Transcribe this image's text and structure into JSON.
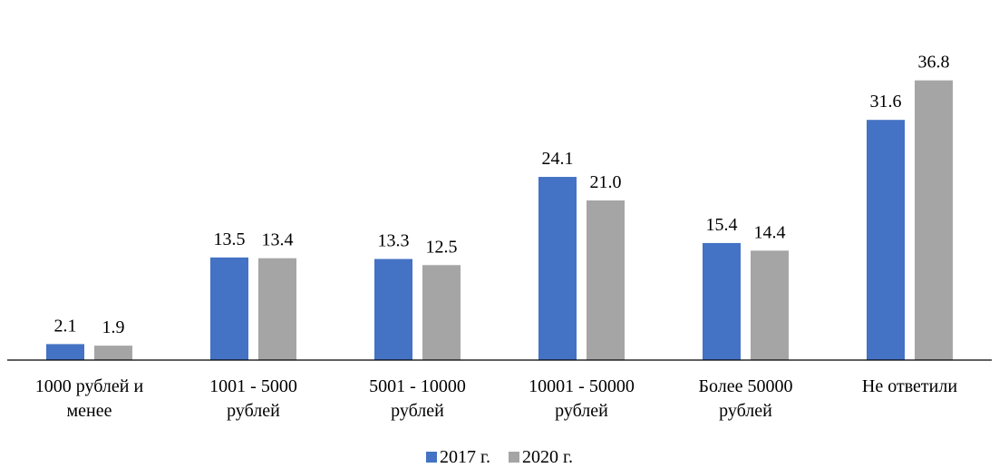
{
  "chart_data": {
    "type": "bar",
    "categories": [
      [
        "1000 рублей и",
        "менее"
      ],
      [
        "1001 - 5000",
        "рублей"
      ],
      [
        "5001 - 10000",
        "рублей"
      ],
      [
        "10001 - 50000",
        "рублей"
      ],
      [
        "Более 50000",
        "рублей"
      ],
      [
        "Не ответили"
      ]
    ],
    "series": [
      {
        "name": "2017 г.",
        "color": "#4472C4",
        "values": [
          2.1,
          13.5,
          13.3,
          24.1,
          15.4,
          31.6
        ]
      },
      {
        "name": "2020 г.",
        "color": "#A5A5A5",
        "values": [
          1.9,
          13.4,
          12.5,
          21.0,
          14.4,
          36.8
        ]
      }
    ],
    "ylim": [
      0,
      40
    ],
    "grid": false,
    "legend_position": "bottom"
  }
}
